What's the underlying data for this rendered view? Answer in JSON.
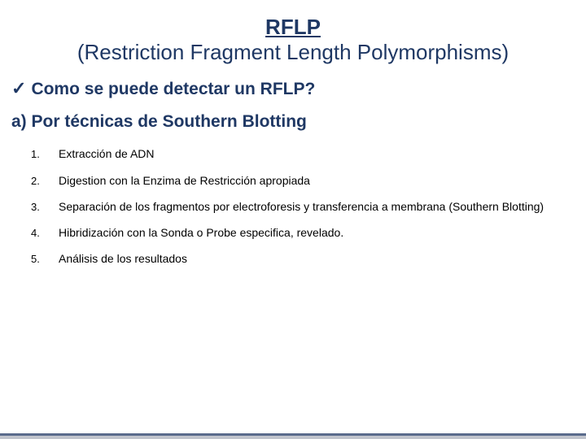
{
  "colors": {
    "heading": "#1f3864",
    "body_text": "#000000",
    "background": "#ffffff",
    "bottom_bar_light": "#c0c4cc",
    "bottom_bar_dark": "#5a6b8c"
  },
  "typography": {
    "title_fontsize_pt": 20,
    "heading_fontsize_pt": 16,
    "step_fontsize_pt": 11,
    "font_family": "Verdana"
  },
  "title": {
    "main": "RFLP",
    "sub": "(Restriction Fragment Length Polymorphisms)"
  },
  "question": {
    "bullet_glyph": "✓",
    "text": "Como se puede detectar un RFLP?"
  },
  "method": {
    "label": "a) Por técnicas de Southern Blotting"
  },
  "steps": [
    {
      "num": "1.",
      "text": "Extracción de ADN"
    },
    {
      "num": "2.",
      "text": "Digestion con la Enzima de Restricción apropiada"
    },
    {
      "num": "3.",
      "text": "Separación de los fragmentos por electroforesis y transferencia a membrana (Southern Blotting)"
    },
    {
      "num": "4.",
      "text": "Hibridización con la Sonda o Probe especifica, revelado."
    },
    {
      "num": "5.",
      "text": "Análisis de los resultados"
    }
  ]
}
